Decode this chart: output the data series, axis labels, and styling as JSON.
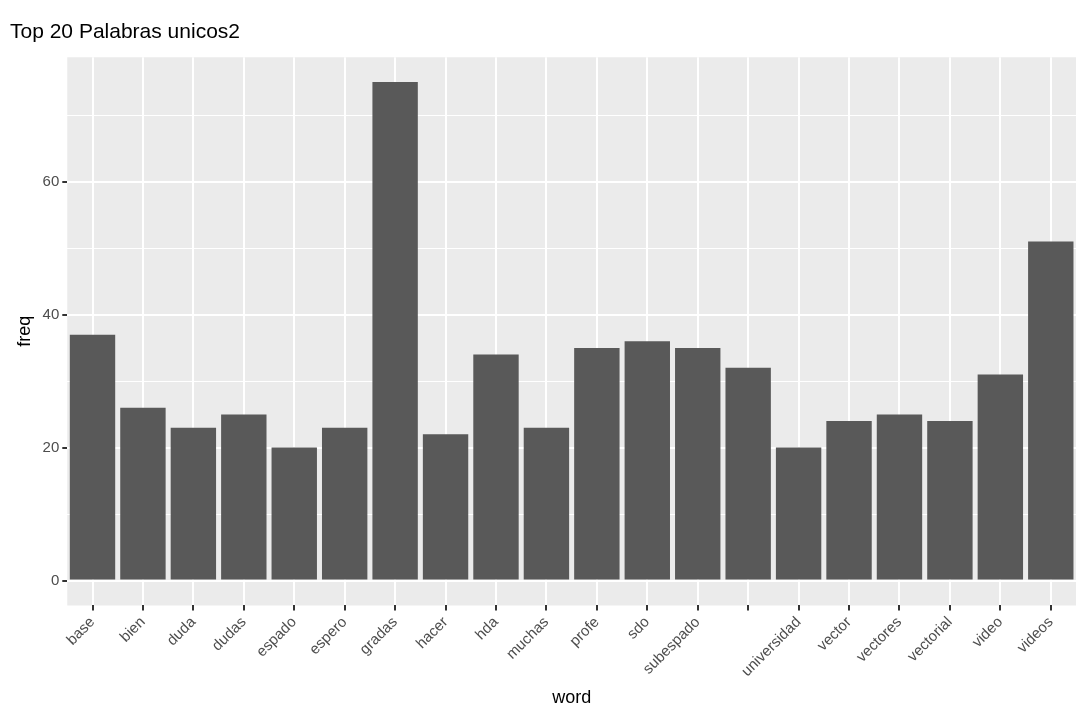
{
  "chart_data": {
    "type": "bar",
    "title": "Top 20 Palabras unicos2",
    "xlabel": "word",
    "ylabel": "freq",
    "categories": [
      "base",
      "bien",
      "duda",
      "dudas",
      "espado",
      "espero",
      "gradas",
      "hacer",
      "hda",
      "muchas",
      "profe",
      "sdo",
      "subespado",
      null,
      "universidad",
      "vector",
      "vectores",
      "vectorial",
      "video",
      "videos"
    ],
    "values": [
      37,
      26,
      23,
      25,
      20,
      23,
      75,
      22,
      34,
      23,
      35,
      36,
      35,
      32,
      20,
      24,
      25,
      24,
      31,
      51
    ],
    "color": "#595959",
    "ylim": [
      -3.75,
      78.75
    ],
    "yticks": [
      0,
      {
        "value": 10,
        "label": null
      },
      20,
      {
        "value": 30,
        "label": null
      },
      40,
      {
        "value": 50,
        "label": null
      },
      60,
      {
        "value": 70,
        "label": null
      }
    ],
    "grid": true
  }
}
